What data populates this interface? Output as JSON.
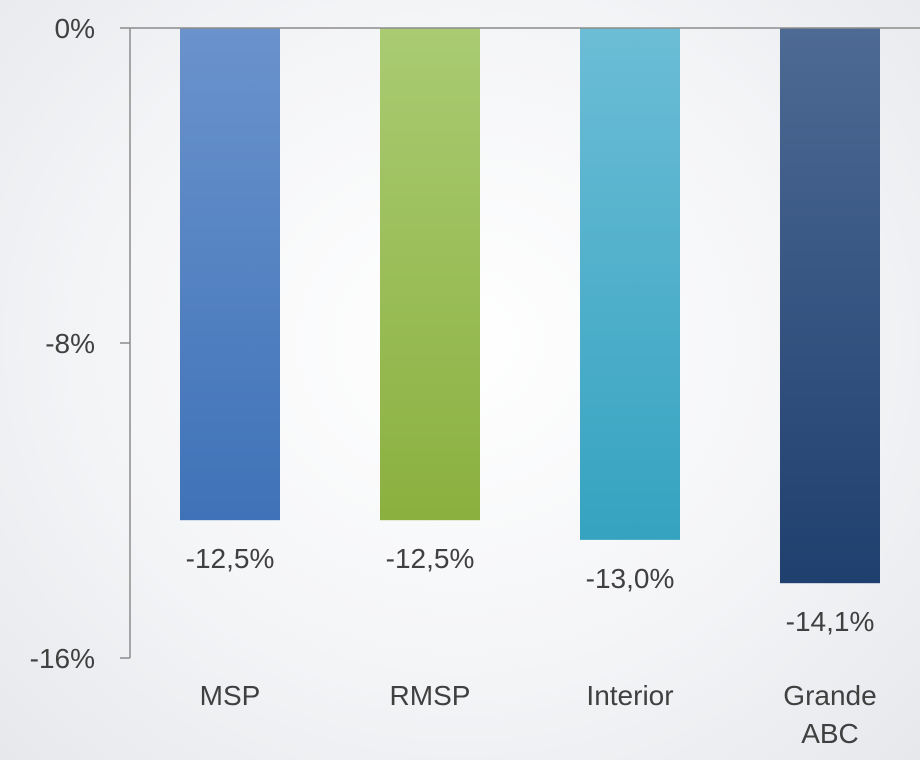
{
  "chart_data": {
    "type": "bar",
    "categories": [
      [
        "MSP"
      ],
      [
        "RMSP"
      ],
      [
        "Interior"
      ],
      [
        "Grande",
        "ABC"
      ]
    ],
    "values": [
      -12.5,
      -12.5,
      -13.0,
      -14.1
    ],
    "data_labels": [
      "-12,5%",
      "-12,5%",
      "-13,0%",
      "-14,1%"
    ],
    "ylim": [
      -16,
      0
    ],
    "yticks": [
      0,
      -8,
      -16
    ],
    "ytick_labels": [
      "0%",
      "-8%",
      "-16%"
    ],
    "title": "",
    "xlabel": "",
    "ylabel": "",
    "grid": false,
    "bar_colors": [
      [
        "#6a93cc",
        "#3f72b8"
      ],
      [
        "#aacb72",
        "#8bb03f"
      ],
      [
        "#6cbdd6",
        "#35a3c0"
      ],
      [
        "#4d6a94",
        "#1f3f6e"
      ]
    ],
    "axis_color": "#8c8c8c"
  }
}
